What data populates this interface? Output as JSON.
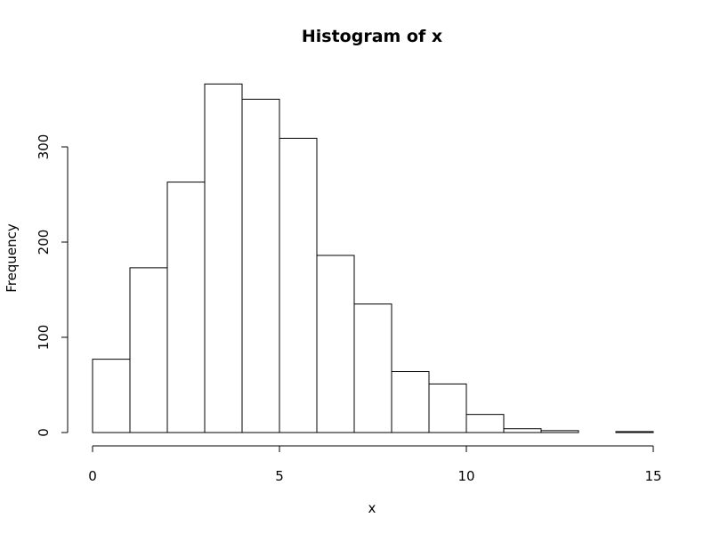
{
  "chart_data": {
    "type": "bar",
    "title": "Histogram of x",
    "xlabel": "x",
    "ylabel": "Frequency",
    "bins": [
      {
        "x0": 0,
        "x1": 1,
        "count": 77
      },
      {
        "x0": 1,
        "x1": 2,
        "count": 173
      },
      {
        "x0": 2,
        "x1": 3,
        "count": 263
      },
      {
        "x0": 3,
        "x1": 4,
        "count": 366
      },
      {
        "x0": 4,
        "x1": 5,
        "count": 350
      },
      {
        "x0": 5,
        "x1": 6,
        "count": 309
      },
      {
        "x0": 6,
        "x1": 7,
        "count": 186
      },
      {
        "x0": 7,
        "x1": 8,
        "count": 135
      },
      {
        "x0": 8,
        "x1": 9,
        "count": 64
      },
      {
        "x0": 9,
        "x1": 10,
        "count": 51
      },
      {
        "x0": 10,
        "x1": 11,
        "count": 19
      },
      {
        "x0": 11,
        "x1": 12,
        "count": 4
      },
      {
        "x0": 12,
        "x1": 13,
        "count": 2
      },
      {
        "x0": 13,
        "x1": 14,
        "count": 0
      },
      {
        "x0": 14,
        "x1": 15,
        "count": 1
      }
    ],
    "xlim": [
      0,
      15
    ],
    "ylim": [
      0,
      366
    ],
    "xticks": [
      0,
      5,
      10,
      15
    ],
    "yticks": [
      0,
      100,
      200,
      300
    ],
    "grid": false,
    "bar_fill": "#ffffff",
    "bar_stroke": "#000000"
  }
}
